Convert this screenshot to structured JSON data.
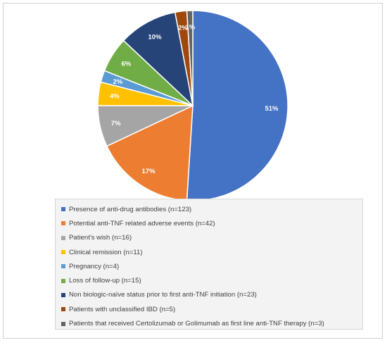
{
  "chart_data": {
    "type": "pie",
    "slices": [
      {
        "label": "Presence of anti-drug antibodies (n=123)",
        "value": 51,
        "display": "51%",
        "color": "#4472c4"
      },
      {
        "label": "Potential anti-TNF related adverse events (n=42)",
        "value": 17,
        "display": "17%",
        "color": "#ed7d31"
      },
      {
        "label": "Patient's wish (n=16)",
        "value": 7,
        "display": "7%",
        "color": "#a5a5a5"
      },
      {
        "label": "Clinical remission (n=11)",
        "value": 4,
        "display": "4%",
        "color": "#ffc000"
      },
      {
        "label": "Pregnancy (n=4)",
        "value": 2,
        "display": "2%",
        "color": "#5b9bd5"
      },
      {
        "label": "Loss of follow-up (n=15)",
        "value": 6,
        "display": "6%",
        "color": "#70ad47"
      },
      {
        "label": "Non biologic-naïve status prior to first anti-TNF initiation  (n=23)",
        "value": 10,
        "display": "10%",
        "color": "#264478"
      },
      {
        "label": "Patients with unclassified IBD (n=5)",
        "value": 2,
        "display": "2%",
        "color": "#9e480e"
      },
      {
        "label": "Patients that received Certolizumab or Golimumab as first line anti-TNF therapy (n=3)",
        "value": 1,
        "display": "1%",
        "color": "#636363"
      }
    ],
    "legend_position": "bottom"
  }
}
